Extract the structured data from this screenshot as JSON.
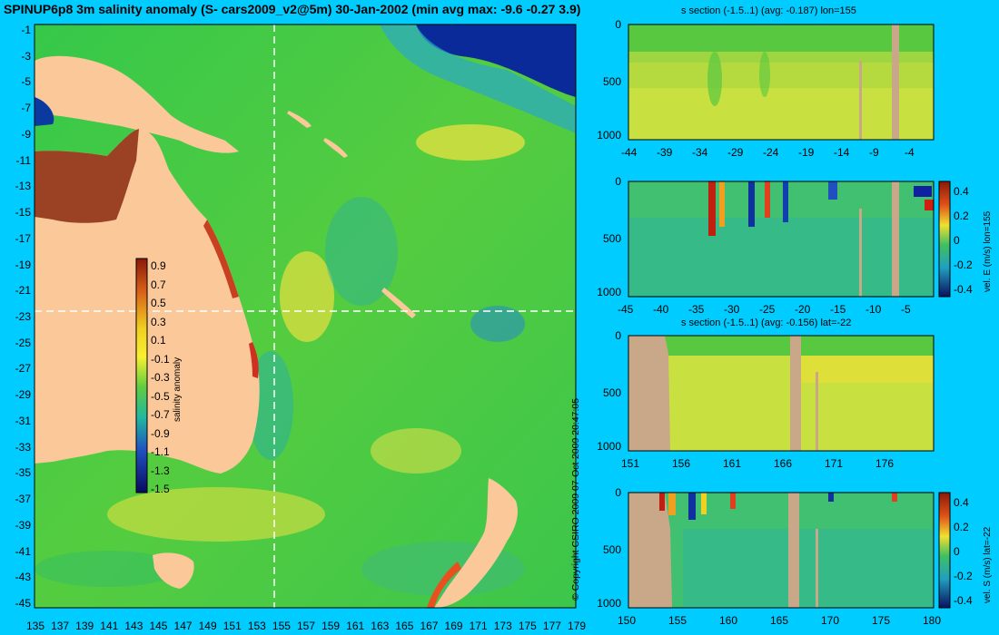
{
  "main_map": {
    "title": "SPINUP6p8 3m salinity anomaly (S- cars2009_v2@5m) 30-Jan-2002 (min avg max: -9.6 -0.27 3.9)",
    "lat_ticks": [
      "-1",
      "-3",
      "-5",
      "-7",
      "-9",
      "-11",
      "-13",
      "-15",
      "-17",
      "-19",
      "-21",
      "-23",
      "-25",
      "-27",
      "-29",
      "-31",
      "-33",
      "-35",
      "-37",
      "-39",
      "-41",
      "-43",
      "-45"
    ],
    "lon_ticks": [
      "135",
      "137",
      "139",
      "141",
      "143",
      "145",
      "147",
      "149",
      "151",
      "153",
      "155",
      "157",
      "159",
      "161",
      "163",
      "165",
      "167",
      "169",
      "171",
      "173",
      "175",
      "177",
      "179"
    ],
    "colorbar": {
      "label": "salinity anomaly",
      "ticks": [
        "0.9",
        "0.7",
        "0.5",
        "0.3",
        "0.1",
        "-0.1",
        "-0.3",
        "-0.5",
        "-0.7",
        "-0.9",
        "-1.1",
        "-1.3",
        "-1.5"
      ]
    },
    "section_lines": {
      "lon": 155,
      "lat": -22
    }
  },
  "copyright": "© Copyright CSIRO 2009   07-Oct-2009 20:47:05",
  "panels": [
    {
      "title": "s section (-1.5..1) (avg: -0.187) lon=155",
      "x_ticks": [
        "-44",
        "-39",
        "-34",
        "-29",
        "-24",
        "-19",
        "-14",
        "-9",
        "-4"
      ],
      "y_ticks": [
        "0",
        "500",
        "1000"
      ]
    },
    {
      "title": "",
      "x_ticks": [
        "-45",
        "-40",
        "-35",
        "-30",
        "-25",
        "-20",
        "-15",
        "-10",
        "-5"
      ],
      "y_ticks": [
        "0",
        "500",
        "1000"
      ],
      "colorbar_label": "vel. E (m/s) lon=155",
      "colorbar_ticks": [
        "0.4",
        "0.2",
        "0",
        "-0.2",
        "-0.4"
      ]
    },
    {
      "title": "s section (-1.5..1) (avg: -0.156) lat=-22",
      "x_ticks": [
        "151",
        "156",
        "161",
        "166",
        "171",
        "176"
      ],
      "y_ticks": [
        "0",
        "500",
        "1000"
      ]
    },
    {
      "title": "",
      "x_ticks": [
        "150",
        "155",
        "160",
        "165",
        "170",
        "175",
        "180"
      ],
      "y_ticks": [
        "0",
        "500",
        "1000"
      ],
      "colorbar_label": "vel. S (m/s) lat=-22",
      "colorbar_ticks": [
        "0.4",
        "0.2",
        "0",
        "-0.2",
        "-0.4"
      ]
    }
  ],
  "colors": {
    "background": "#00ccff",
    "ocean": "#44c848",
    "land": "#fbc89a",
    "section_land": "#c8a888"
  }
}
